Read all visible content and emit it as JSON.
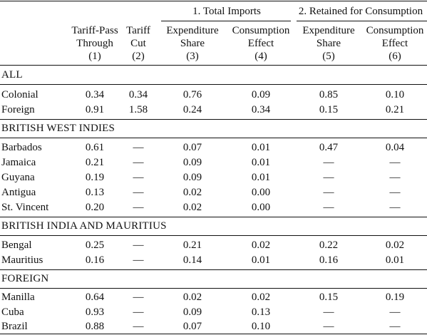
{
  "header": {
    "groups": [
      {
        "label": "1. Total Imports"
      },
      {
        "label": "2. Retained for Consumption"
      }
    ],
    "columns": [
      {
        "lines": [
          "Tariff-Pass",
          "Through",
          "(1)"
        ]
      },
      {
        "lines": [
          "Tariff",
          "Cut",
          "(2)"
        ]
      },
      {
        "lines": [
          "Expenditure",
          "Share",
          "(3)"
        ]
      },
      {
        "lines": [
          "Consumption",
          "Effect",
          "(4)"
        ]
      },
      {
        "lines": [
          "Expenditure",
          "Share",
          "(5)"
        ]
      },
      {
        "lines": [
          "Consumption",
          "Effect",
          "(6)"
        ]
      }
    ]
  },
  "sections": [
    {
      "title": "ALL",
      "rows": [
        {
          "label": "Colonial",
          "values": [
            "0.34",
            "0.34",
            "0.76",
            "0.09",
            "0.85",
            "0.10"
          ]
        },
        {
          "label": "Foreign",
          "values": [
            "0.91",
            "1.58",
            "0.24",
            "0.34",
            "0.15",
            "0.21"
          ]
        }
      ]
    },
    {
      "title": "BRITISH WEST INDIES",
      "rows": [
        {
          "label": "Barbados",
          "values": [
            "0.61",
            "—",
            "0.07",
            "0.01",
            "0.47",
            "0.04"
          ]
        },
        {
          "label": "Jamaica",
          "values": [
            "0.21",
            "—",
            "0.09",
            "0.01",
            "—",
            "—"
          ]
        },
        {
          "label": "Guyana",
          "values": [
            "0.19",
            "—",
            "0.09",
            "0.01",
            "—",
            "—"
          ]
        },
        {
          "label": "Antigua",
          "values": [
            "0.13",
            "—",
            "0.02",
            "0.00",
            "—",
            "—"
          ]
        },
        {
          "label": "St. Vincent",
          "values": [
            "0.20",
            "—",
            "0.02",
            "0.00",
            "—",
            "—"
          ]
        }
      ]
    },
    {
      "title": "BRITISH INDIA AND MAURITIUS",
      "rows": [
        {
          "label": "Bengal",
          "values": [
            "0.25",
            "—",
            "0.21",
            "0.02",
            "0.22",
            "0.02"
          ]
        },
        {
          "label": "Mauritius",
          "values": [
            "0.16",
            "—",
            "0.14",
            "0.01",
            "0.16",
            "0.01"
          ]
        }
      ]
    },
    {
      "title": "FOREIGN",
      "rows": [
        {
          "label": "Manilla",
          "values": [
            "0.64",
            "—",
            "0.02",
            "0.02",
            "0.15",
            "0.19"
          ]
        },
        {
          "label": "Cuba",
          "values": [
            "0.93",
            "—",
            "0.09",
            "0.13",
            "—",
            "—"
          ]
        },
        {
          "label": "Brazil",
          "values": [
            "0.88",
            "—",
            "0.07",
            "0.10",
            "—",
            "—"
          ]
        }
      ]
    }
  ]
}
